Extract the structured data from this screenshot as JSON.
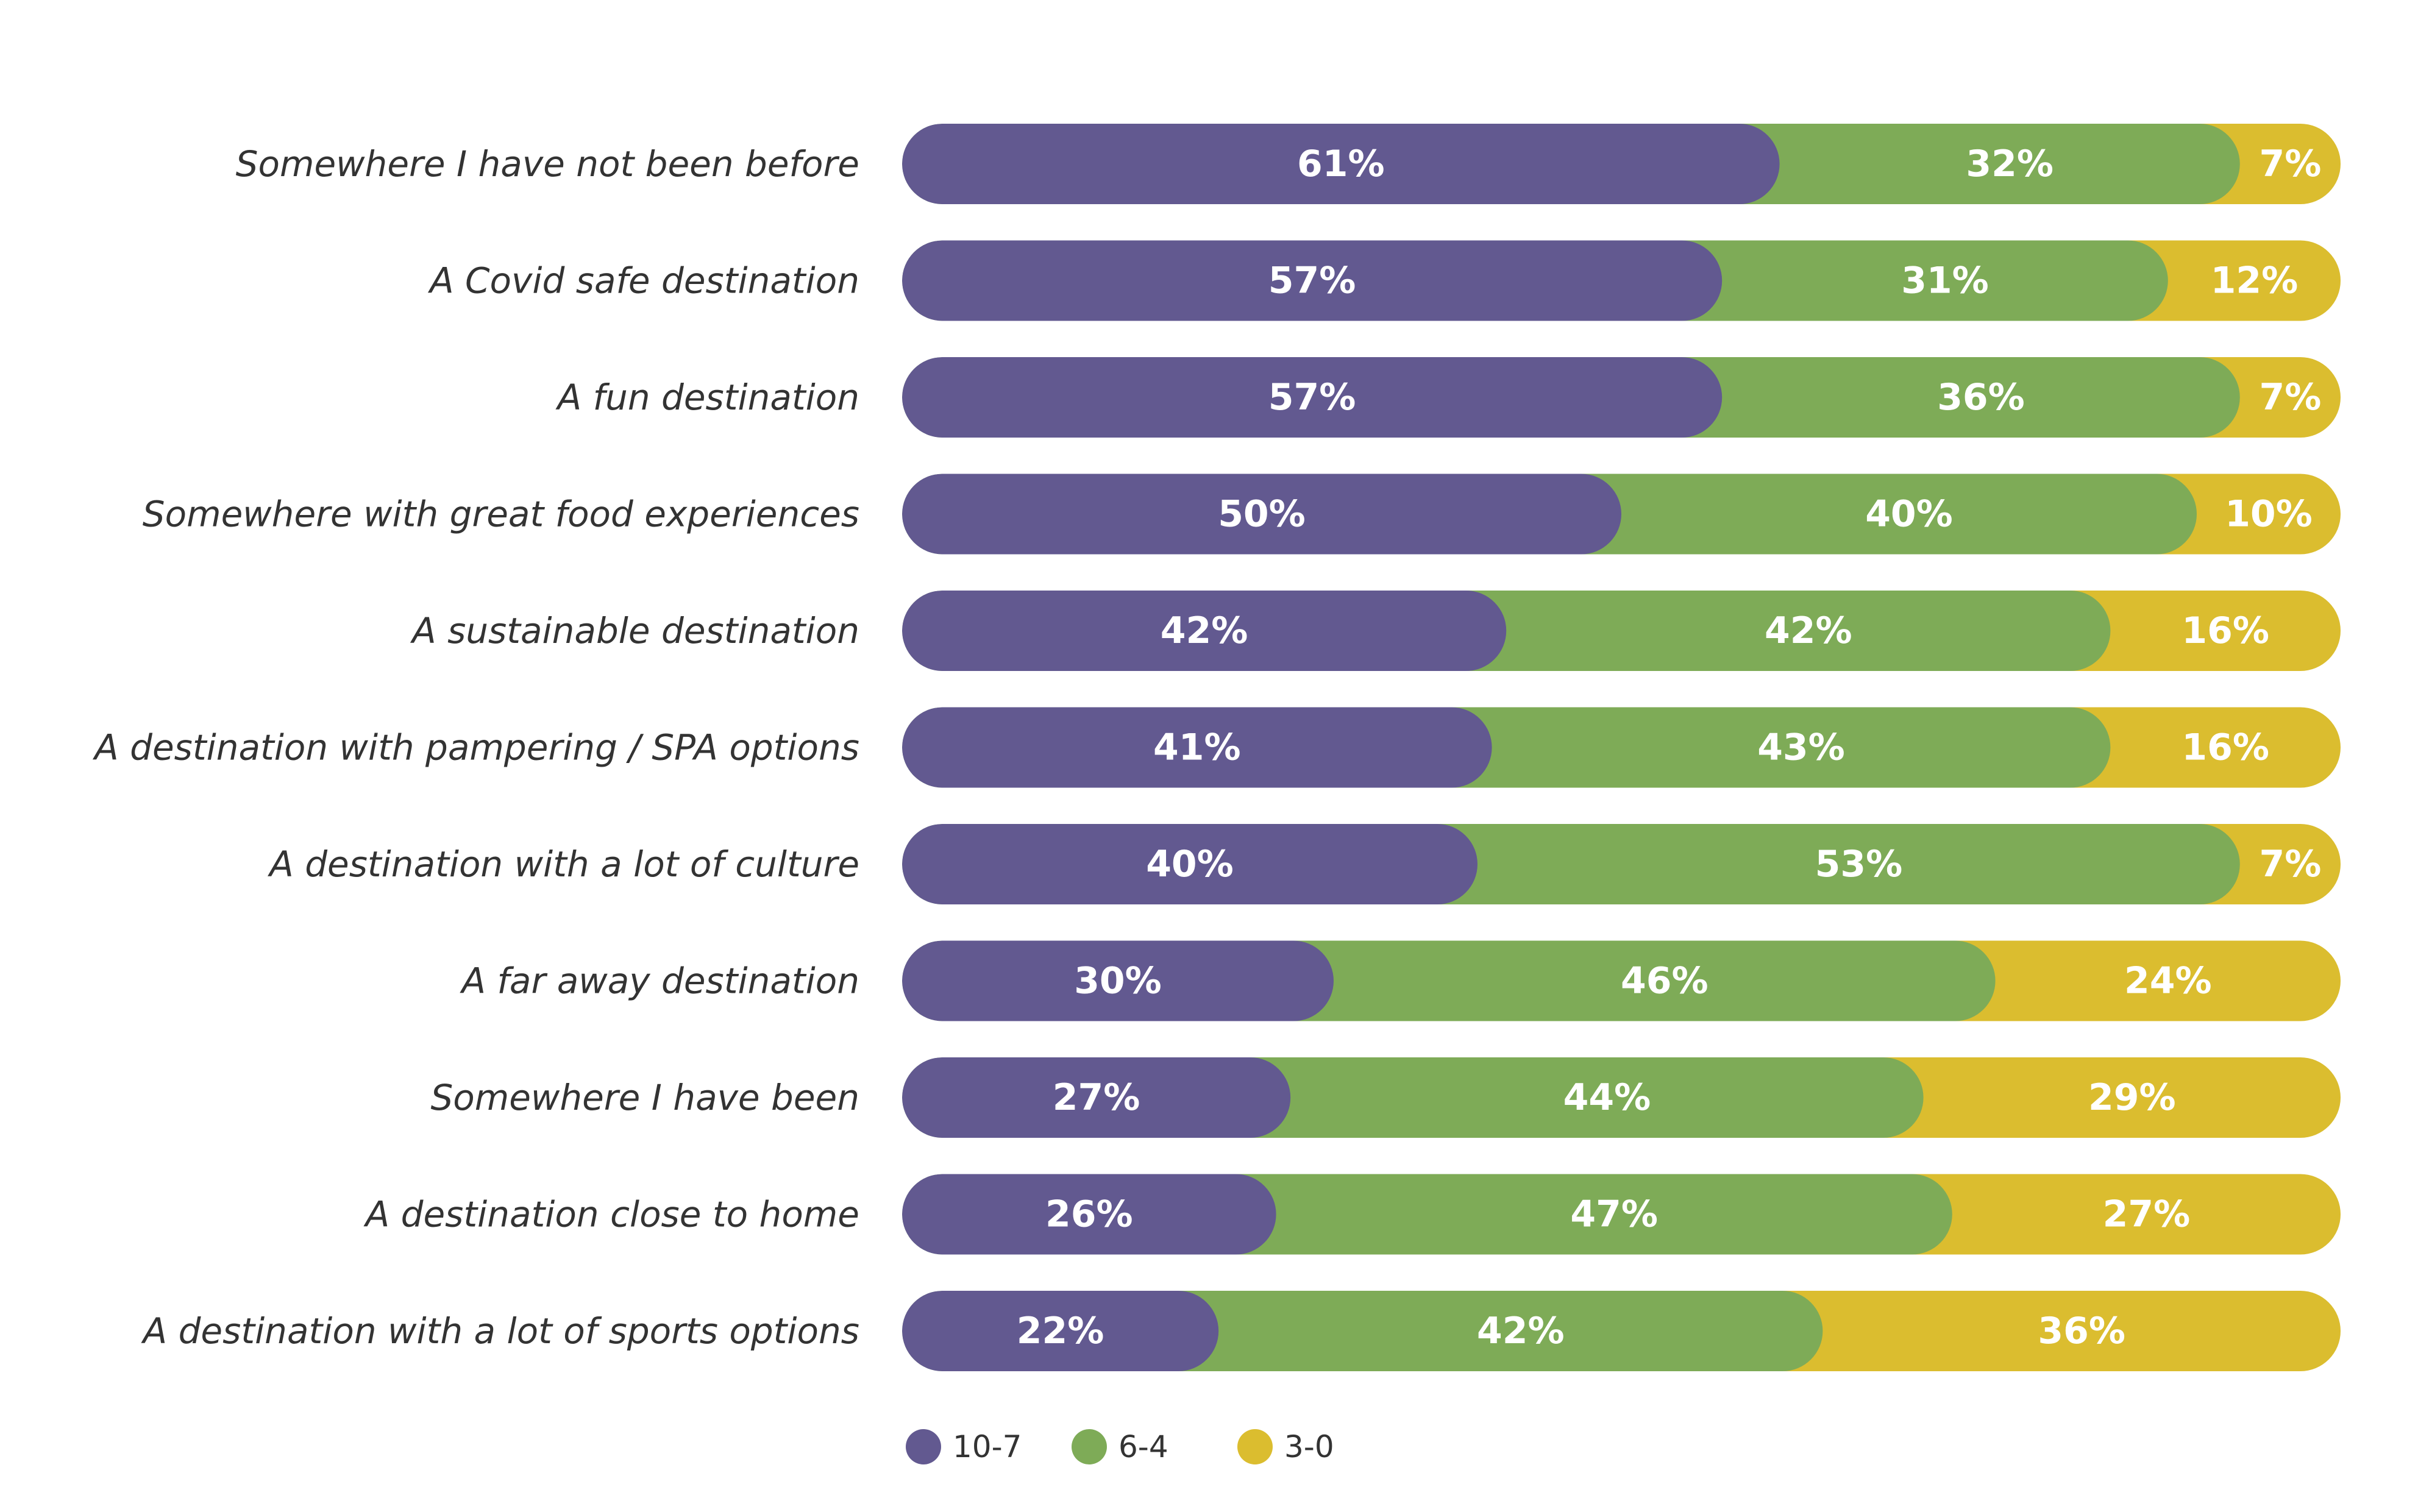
{
  "chart_data": {
    "type": "bar",
    "orientation": "horizontal",
    "stacked": true,
    "normalized": true,
    "title": "",
    "xlabel": "",
    "ylabel": "",
    "xlim": [
      0,
      100
    ],
    "value_suffix": "%",
    "categories": [
      "Somewhere I have not been before",
      "A Covid safe destination",
      "A fun destination",
      "Somewhere with great food experiences",
      "A sustainable destination",
      "A destination with pampering / SPA options",
      "A destination with a lot of culture",
      "A far away destination",
      "Somewhere I have been",
      "A destination close to home",
      "A destination with a lot of sports options"
    ],
    "series": [
      {
        "name": "10-7",
        "color": "#625990",
        "values": [
          61,
          57,
          57,
          50,
          42,
          41,
          40,
          30,
          27,
          26,
          22
        ]
      },
      {
        "name": "6-4",
        "color": "#7eab57",
        "values": [
          32,
          31,
          36,
          40,
          42,
          43,
          53,
          46,
          44,
          47,
          42
        ]
      },
      {
        "name": "3-0",
        "color": "#dbbd2f",
        "values": [
          7,
          12,
          7,
          10,
          16,
          16,
          7,
          24,
          29,
          27,
          36
        ]
      }
    ],
    "legend_position": "bottom",
    "grid": false
  }
}
